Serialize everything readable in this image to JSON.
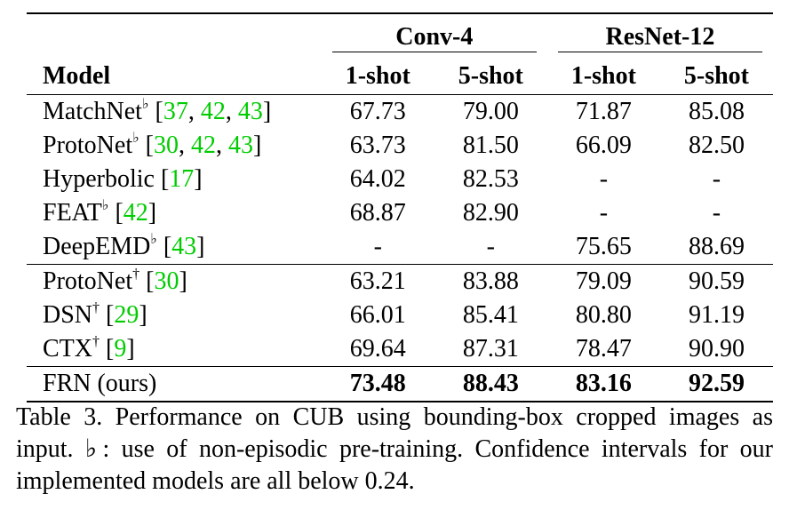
{
  "table": {
    "model_header": "Model",
    "groups": [
      "Conv-4",
      "ResNet-12"
    ],
    "subheaders": [
      "1-shot",
      "5-shot",
      "1-shot",
      "5-shot"
    ],
    "rows": [
      {
        "name": "MatchNet",
        "mark": "♭",
        "cite_open": "[",
        "cites": [
          "37",
          "42",
          "43"
        ],
        "cite_close": "]",
        "values": [
          "67.73",
          "79.00",
          "71.87",
          "85.08"
        ]
      },
      {
        "name": "ProtoNet",
        "mark": "♭",
        "cite_open": "[",
        "cites": [
          "30",
          "42",
          "43"
        ],
        "cite_close": "]",
        "values": [
          "63.73",
          "81.50",
          "66.09",
          "82.50"
        ]
      },
      {
        "name": "Hyperbolic",
        "mark": "",
        "cite_open": "[",
        "cites": [
          "17"
        ],
        "cite_close": "]",
        "values": [
          "64.02",
          "82.53",
          "-",
          "-"
        ]
      },
      {
        "name": "FEAT",
        "mark": "♭",
        "cite_open": "[",
        "cites": [
          "42"
        ],
        "cite_close": "]",
        "values": [
          "68.87",
          "82.90",
          "-",
          "-"
        ]
      },
      {
        "name": "DeepEMD",
        "mark": "♭",
        "cite_open": "[",
        "cites": [
          "43"
        ],
        "cite_close": "]",
        "values": [
          "-",
          "-",
          "75.65",
          "88.69"
        ]
      },
      {
        "name": "ProtoNet",
        "mark": "†",
        "cite_open": "[",
        "cites": [
          "30"
        ],
        "cite_close": "]",
        "values": [
          "63.21",
          "83.88",
          "79.09",
          "90.59"
        ]
      },
      {
        "name": "DSN",
        "mark": "†",
        "cite_open": "[",
        "cites": [
          "29"
        ],
        "cite_close": "]",
        "values": [
          "66.01",
          "85.41",
          "80.80",
          "91.19"
        ]
      },
      {
        "name": "CTX",
        "mark": "†",
        "cite_open": "[",
        "cites": [
          "9"
        ],
        "cite_close": "]",
        "values": [
          "69.64",
          "87.31",
          "78.47",
          "90.90"
        ]
      }
    ],
    "final_row": {
      "name": "FRN (ours)",
      "values": [
        "73.48",
        "88.43",
        "83.16",
        "92.59"
      ]
    }
  },
  "caption": {
    "text": "Table 3. Performance on CUB using bounding-box cropped images as input. ♭: use of non-episodic pre-training. Confidence intervals for our implemented models are all below 0.24."
  },
  "colors": {
    "citation": "#00cc00",
    "text": "#000000"
  }
}
